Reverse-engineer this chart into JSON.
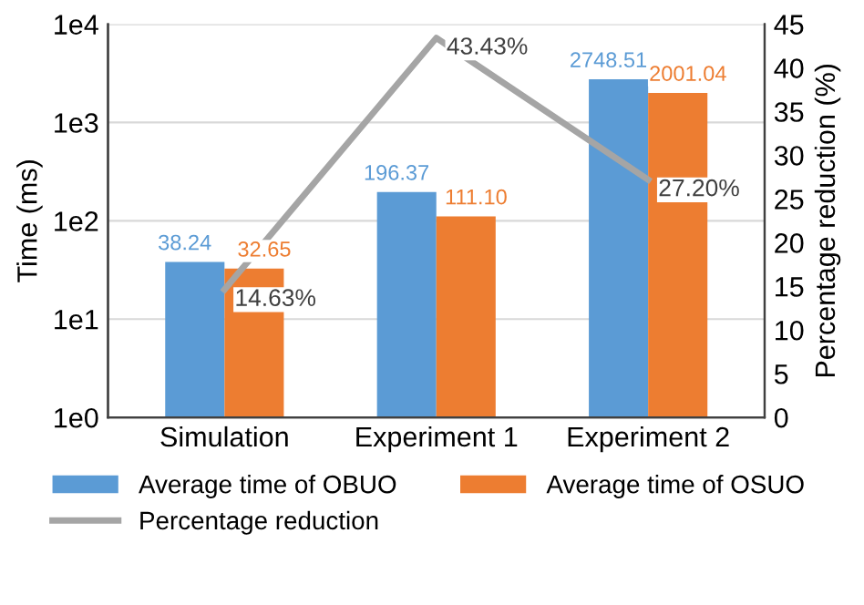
{
  "chart_data": {
    "type": "bar",
    "categories": [
      "Simulation",
      "Experiment 1",
      "Experiment 2"
    ],
    "ylabel": "Time (ms)",
    "y2label": "Percentage reduction (%)",
    "log": "y",
    "ylim": [
      1,
      10000
    ],
    "yticks": [
      {
        "value": 1,
        "label": "1e0"
      },
      {
        "value": 10,
        "label": "1e1"
      },
      {
        "value": 100,
        "label": "1e2"
      },
      {
        "value": 1000,
        "label": "1e3"
      },
      {
        "value": 10000,
        "label": "1e4"
      }
    ],
    "y2lim": [
      0,
      45
    ],
    "y2ticks": [
      0,
      5,
      10,
      15,
      20,
      25,
      30,
      35,
      40,
      45
    ],
    "grid": "y",
    "legend": "bottom",
    "series": [
      {
        "name": "Average time of OBUO",
        "color": "#5b9bd5",
        "values": [
          38.24,
          196.37,
          2748.51
        ],
        "value_labels": [
          "38.24",
          "196.37",
          "2748.51"
        ]
      },
      {
        "name": "Average time of OSUO",
        "color": "#ed7d31",
        "values": [
          32.65,
          111.1,
          2001.04
        ],
        "value_labels": [
          "32.65",
          "111.10",
          "2001.04"
        ]
      },
      {
        "name": "Percentage reduction",
        "type": "line",
        "axis": "y2",
        "color": "#a5a5a5",
        "values": [
          14.63,
          43.43,
          27.2
        ],
        "value_labels": [
          "14.63%",
          "43.43%",
          "27.20%"
        ]
      }
    ]
  }
}
